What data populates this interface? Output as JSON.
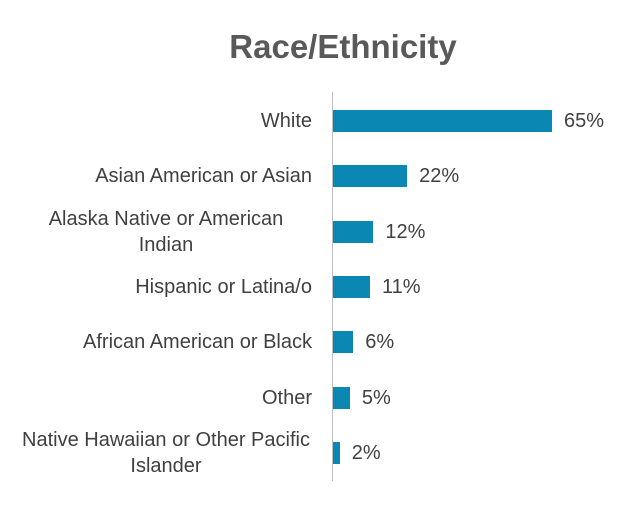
{
  "chart_data": {
    "type": "bar",
    "orientation": "horizontal",
    "title": "Race/Ethnicity",
    "categories": [
      "White",
      "Asian American or Asian",
      "Alaska Native or American Indian",
      "Hispanic or Latina/o",
      "African American or Black",
      "Other",
      "Native Hawaiian or Other Pacific Islander"
    ],
    "values": [
      65,
      22,
      12,
      11,
      6,
      5,
      2
    ],
    "value_labels": [
      "65%",
      "22%",
      "12%",
      "11%",
      "6%",
      "5%",
      "2%"
    ],
    "color": "#0b87b3"
  }
}
